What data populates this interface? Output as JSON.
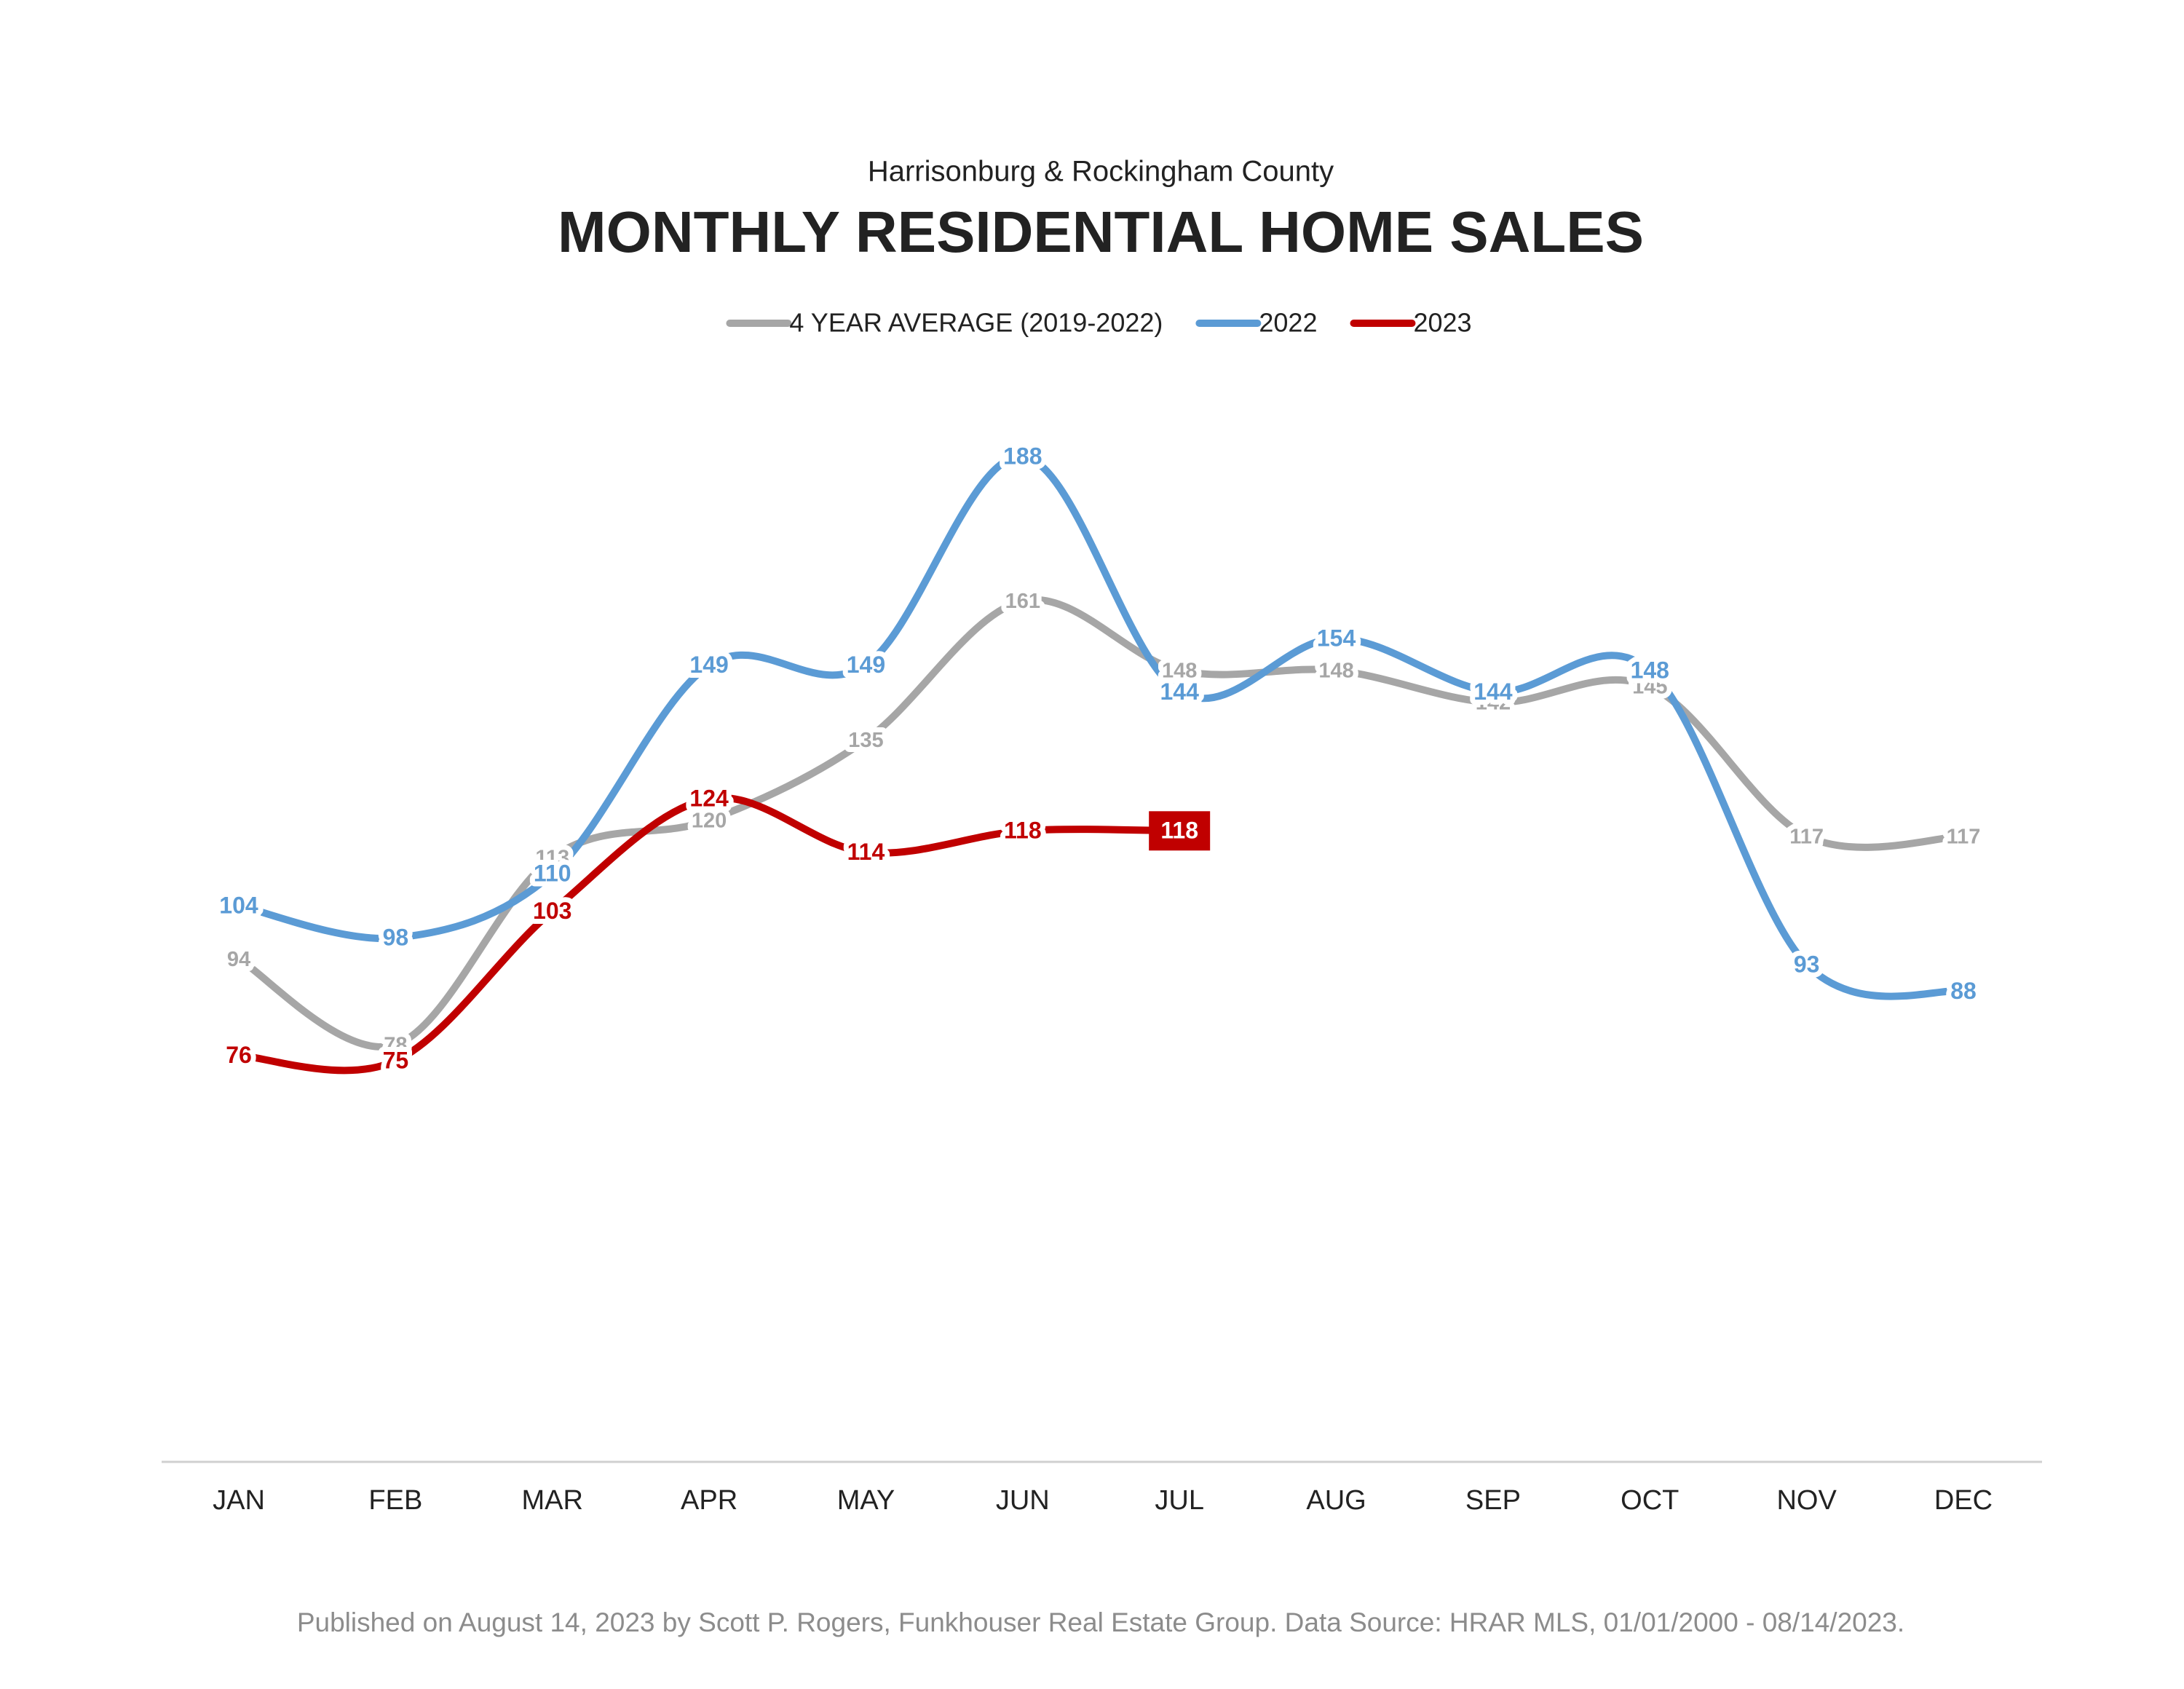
{
  "chart_data": {
    "type": "line",
    "subtitle": "Harrisonburg & Rockingham County",
    "title": "MONTHLY RESIDENTIAL HOME SALES",
    "categories": [
      "JAN",
      "FEB",
      "MAR",
      "APR",
      "MAY",
      "JUN",
      "JUL",
      "AUG",
      "SEP",
      "OCT",
      "NOV",
      "DEC"
    ],
    "series": [
      {
        "name": "4 YEAR AVERAGE (2019-2022)",
        "color": "#a6a6a6",
        "values": [
          94,
          78,
          113,
          120,
          135,
          161,
          148,
          148,
          142,
          145,
          117,
          117
        ]
      },
      {
        "name": "2022",
        "color": "#5b9bd5",
        "values": [
          104,
          98,
          110,
          149,
          149,
          188,
          144,
          154,
          144,
          148,
          93,
          88
        ]
      },
      {
        "name": "2023",
        "color": "#c00000",
        "values": [
          76,
          75,
          103,
          124,
          114,
          118,
          118,
          null,
          null,
          null,
          null,
          null
        ]
      }
    ],
    "ylim": [
      0,
      200
    ],
    "footnote": "Published on August 14, 2023 by Scott P. Rogers, Funkhouser Real Estate Group. Data Source: HRAR MLS, 01/01/2000 - 08/14/2023."
  }
}
